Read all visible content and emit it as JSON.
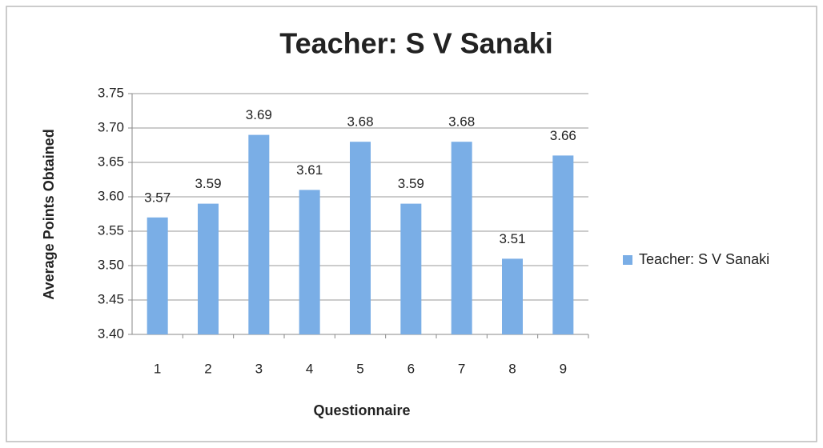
{
  "chart_data": {
    "type": "bar",
    "title": "Teacher: S V Sanaki",
    "x_label": "Questionnaire",
    "y_label": "Average Points Obtained",
    "categories": [
      "1",
      "2",
      "3",
      "4",
      "5",
      "6",
      "7",
      "8",
      "9"
    ],
    "series": [
      {
        "name": "Teacher: S V Sanaki",
        "color": "#7aaee6",
        "values": [
          3.57,
          3.59,
          3.69,
          3.61,
          3.68,
          3.59,
          3.68,
          3.51,
          3.66
        ]
      }
    ],
    "ylim": [
      3.4,
      3.75
    ],
    "yticks": [
      {
        "value": 3.4,
        "label": "3.40"
      },
      3.45,
      {
        "value": 3.5,
        "label": "3.50"
      },
      3.55,
      {
        "value": 3.6,
        "label": "3.60"
      },
      3.65,
      {
        "value": 3.7,
        "label": "3.70"
      },
      3.75
    ],
    "grid": true,
    "legend": "right"
  }
}
